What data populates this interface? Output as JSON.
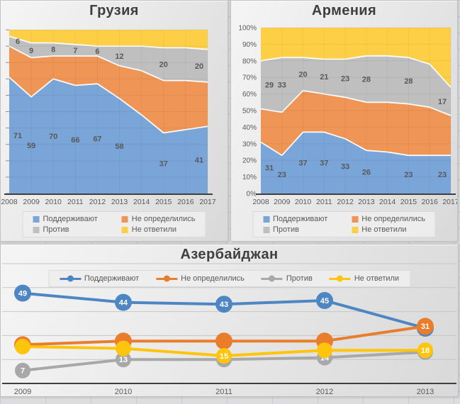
{
  "colors": {
    "area_support": "#7AA5D8",
    "area_undecided": "#EF9556",
    "area_against": "#BFBFBF",
    "area_no_answer": "#FDCF47",
    "line_support": "#4E86C4",
    "line_undecided": "#E97D2C",
    "line_against": "#A9A8A8",
    "line_no_answer": "#FFC40C",
    "title_text": "#3F3F3F",
    "label_text": "#595959",
    "axis_line": "#3F3F3F",
    "gridline": "#C6C6C6"
  },
  "legend": {
    "support": "Поддерживают",
    "undecided": "Не определились",
    "against": "Против",
    "no_answer": "Не ответили"
  },
  "chart_data": [
    {
      "id": "georgia",
      "type": "area",
      "stacked": "percent",
      "title": "Грузия",
      "categories": [
        "2008",
        "2009",
        "2010",
        "2011",
        "2012",
        "2013",
        "2014",
        "2015",
        "2016",
        "2017"
      ],
      "y_axis": {
        "min": 0,
        "max": 100,
        "step": 10,
        "labels_visible": false
      },
      "legend_position": "bottom",
      "series": [
        {
          "name": "Поддерживают",
          "color_key": "area_support",
          "values": [
            71,
            59,
            70,
            66,
            67,
            58,
            48,
            37,
            39,
            41
          ],
          "labels": [
            71,
            59,
            70,
            66,
            67,
            58,
            null,
            37,
            null,
            41
          ]
        },
        {
          "name": "Не определились",
          "color_key": "area_undecided",
          "values": [
            19,
            24,
            14,
            18,
            17,
            20,
            27,
            32,
            30,
            27
          ],
          "labels": [
            null,
            null,
            null,
            null,
            null,
            null,
            null,
            null,
            null,
            null
          ]
        },
        {
          "name": "Против",
          "color_key": "area_against",
          "values": [
            6,
            9,
            8,
            7,
            6,
            12,
            15,
            20,
            20,
            20
          ],
          "labels": [
            6,
            9,
            8,
            7,
            6,
            12,
            null,
            20,
            null,
            20
          ]
        },
        {
          "name": "Не ответили",
          "color_key": "area_no_answer",
          "values": [
            4,
            8,
            8,
            9,
            10,
            10,
            10,
            11,
            11,
            12
          ],
          "labels": [
            null,
            null,
            null,
            null,
            null,
            null,
            null,
            null,
            null,
            null
          ]
        }
      ]
    },
    {
      "id": "armenia",
      "type": "area",
      "stacked": "percent",
      "title": "Армения",
      "categories": [
        "2008",
        "2009",
        "2010",
        "2011",
        "2012",
        "2013",
        "2014",
        "2015",
        "2016",
        "2017"
      ],
      "y_axis": {
        "min": 0,
        "max": 100,
        "step": 10,
        "labels_visible": true,
        "label_format": "percent",
        "tick_labels": [
          "0%",
          "10%",
          "20%",
          "30%",
          "40%",
          "50%",
          "60%",
          "70%",
          "80%",
          "90%",
          "100%"
        ]
      },
      "legend_position": "bottom",
      "series": [
        {
          "name": "Поддерживают",
          "color_key": "area_support",
          "values": [
            31,
            23,
            37,
            37,
            33,
            26,
            25,
            23,
            23,
            23
          ],
          "labels": [
            31,
            23,
            37,
            37,
            33,
            26,
            null,
            23,
            null,
            23
          ]
        },
        {
          "name": "Не определились",
          "color_key": "area_undecided",
          "values": [
            20,
            26,
            25,
            23,
            25,
            29,
            30,
            31,
            29,
            24
          ],
          "labels": [
            null,
            null,
            null,
            null,
            null,
            null,
            null,
            null,
            null,
            null
          ]
        },
        {
          "name": "Против",
          "color_key": "area_against",
          "values": [
            29,
            33,
            20,
            21,
            23,
            28,
            28,
            28,
            26,
            17
          ],
          "labels": [
            29,
            33,
            20,
            21,
            23,
            28,
            null,
            28,
            null,
            17
          ]
        },
        {
          "name": "Не ответили",
          "color_key": "area_no_answer",
          "values": [
            20,
            18,
            18,
            19,
            19,
            17,
            17,
            18,
            22,
            36
          ],
          "labels": [
            null,
            null,
            null,
            null,
            null,
            null,
            null,
            null,
            null,
            null
          ]
        }
      ]
    },
    {
      "id": "azerbaijan",
      "type": "line",
      "title": "Азербайджан",
      "categories": [
        "2009",
        "2010",
        "2011",
        "2012",
        "2013"
      ],
      "y_axis": {
        "min": 0,
        "max": 65,
        "step": 13,
        "labels_visible": false
      },
      "legend_position": "top",
      "series": [
        {
          "name": "Поддерживают",
          "color_key": "line_support",
          "values": [
            49,
            44,
            43,
            45,
            30
          ],
          "labels": [
            49,
            44,
            43,
            45,
            null
          ]
        },
        {
          "name": "Не определились",
          "color_key": "line_undecided",
          "values": [
            21,
            23,
            23,
            23,
            31
          ],
          "labels": [
            null,
            null,
            null,
            null,
            31
          ]
        },
        {
          "name": "Против",
          "color_key": "line_against",
          "values": [
            7,
            13,
            13,
            14,
            17
          ],
          "labels": [
            7,
            13,
            null,
            14,
            null
          ]
        },
        {
          "name": "Не ответили",
          "color_key": "line_no_answer",
          "values": [
            20,
            19,
            15,
            18,
            18
          ],
          "labels": [
            null,
            null,
            15,
            null,
            18
          ]
        }
      ]
    }
  ]
}
